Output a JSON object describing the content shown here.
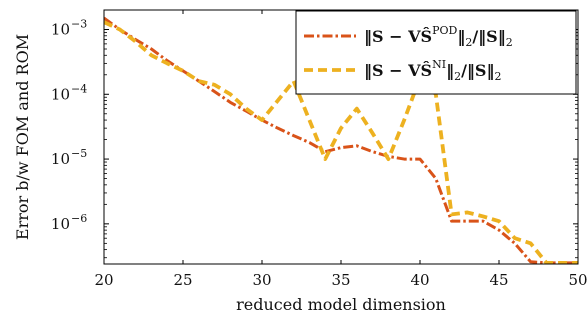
{
  "chart_data": {
    "type": "line",
    "xlabel": "reduced model dimension",
    "ylabel": "Error b/w FOM and ROM",
    "xlim": [
      20,
      50
    ],
    "ylim": [
      2.4e-07,
      0.002
    ],
    "yscale": "log",
    "x_ticks": [
      20,
      25,
      30,
      35,
      40,
      45,
      50
    ],
    "x_tick_labels": [
      "20",
      "25",
      "30",
      "35",
      "40",
      "45",
      "50"
    ],
    "y_ticks": [
      0.001,
      0.0001,
      1e-05,
      1e-06
    ],
    "y_tick_labels": [
      "10",
      "10",
      "10",
      "10"
    ],
    "y_tick_exponents": [
      "−3",
      "−4",
      "−5",
      "−6"
    ],
    "legend_position": "top-right",
    "grid": false,
    "series": [
      {
        "name": "‖S − VŜPOD‖2/‖S‖2",
        "name_parts": {
          "pre": "‖S − VŜ",
          "sup": "POD",
          "post": "‖",
          "sub": "2",
          "tail": "/‖S‖",
          "sub2": "2"
        },
        "color": "#D95319",
        "style": "dash-dot",
        "x": [
          20,
          21,
          22,
          23,
          24,
          25,
          26,
          27,
          28,
          29,
          30,
          31,
          32,
          33,
          34,
          35,
          36,
          37,
          38,
          39,
          40,
          41,
          42,
          43,
          44,
          45,
          46,
          47,
          48,
          49,
          50
        ],
        "y": [
          0.0015,
          0.001,
          0.0007,
          0.0005,
          0.00033,
          0.00023,
          0.00016,
          0.00011,
          7.5e-05,
          5.5e-05,
          4e-05,
          3e-05,
          2.3e-05,
          1.8e-05,
          1.3e-05,
          1.5e-05,
          1.6e-05,
          1.3e-05,
          1.1e-05,
          1e-05,
          1e-05,
          5e-06,
          1.1e-06,
          1.1e-06,
          1.1e-06,
          8e-07,
          5e-07,
          2.6e-07,
          2.5e-07,
          2.5e-07,
          2.5e-07
        ]
      },
      {
        "name": "‖S − VŜNI‖2/‖S‖2",
        "name_parts": {
          "pre": "‖S − VŜ",
          "sup": "NI",
          "post": "‖",
          "sub": "2",
          "tail": "/‖S‖",
          "sub2": "2"
        },
        "color": "#EDB120",
        "style": "dashed",
        "x": [
          20,
          21,
          22,
          23,
          24,
          25,
          26,
          27,
          28,
          29,
          30,
          31,
          32,
          33,
          34,
          35,
          36,
          37,
          38,
          39,
          40,
          41,
          42,
          43,
          44,
          45,
          46,
          47,
          48,
          49,
          50
        ],
        "y": [
          0.0013,
          0.001,
          0.00065,
          0.0004,
          0.0003,
          0.00023,
          0.00016,
          0.00014,
          0.0001,
          6e-05,
          4e-05,
          8e-05,
          0.00016,
          4e-05,
          1e-05,
          3e-05,
          6e-05,
          2.5e-05,
          1e-05,
          4e-05,
          0.00018,
          0.0001,
          1.4e-06,
          1.5e-06,
          1.3e-06,
          1.1e-06,
          6e-07,
          5e-07,
          2.5e-07,
          2.5e-07,
          2.5e-07
        ]
      }
    ]
  }
}
